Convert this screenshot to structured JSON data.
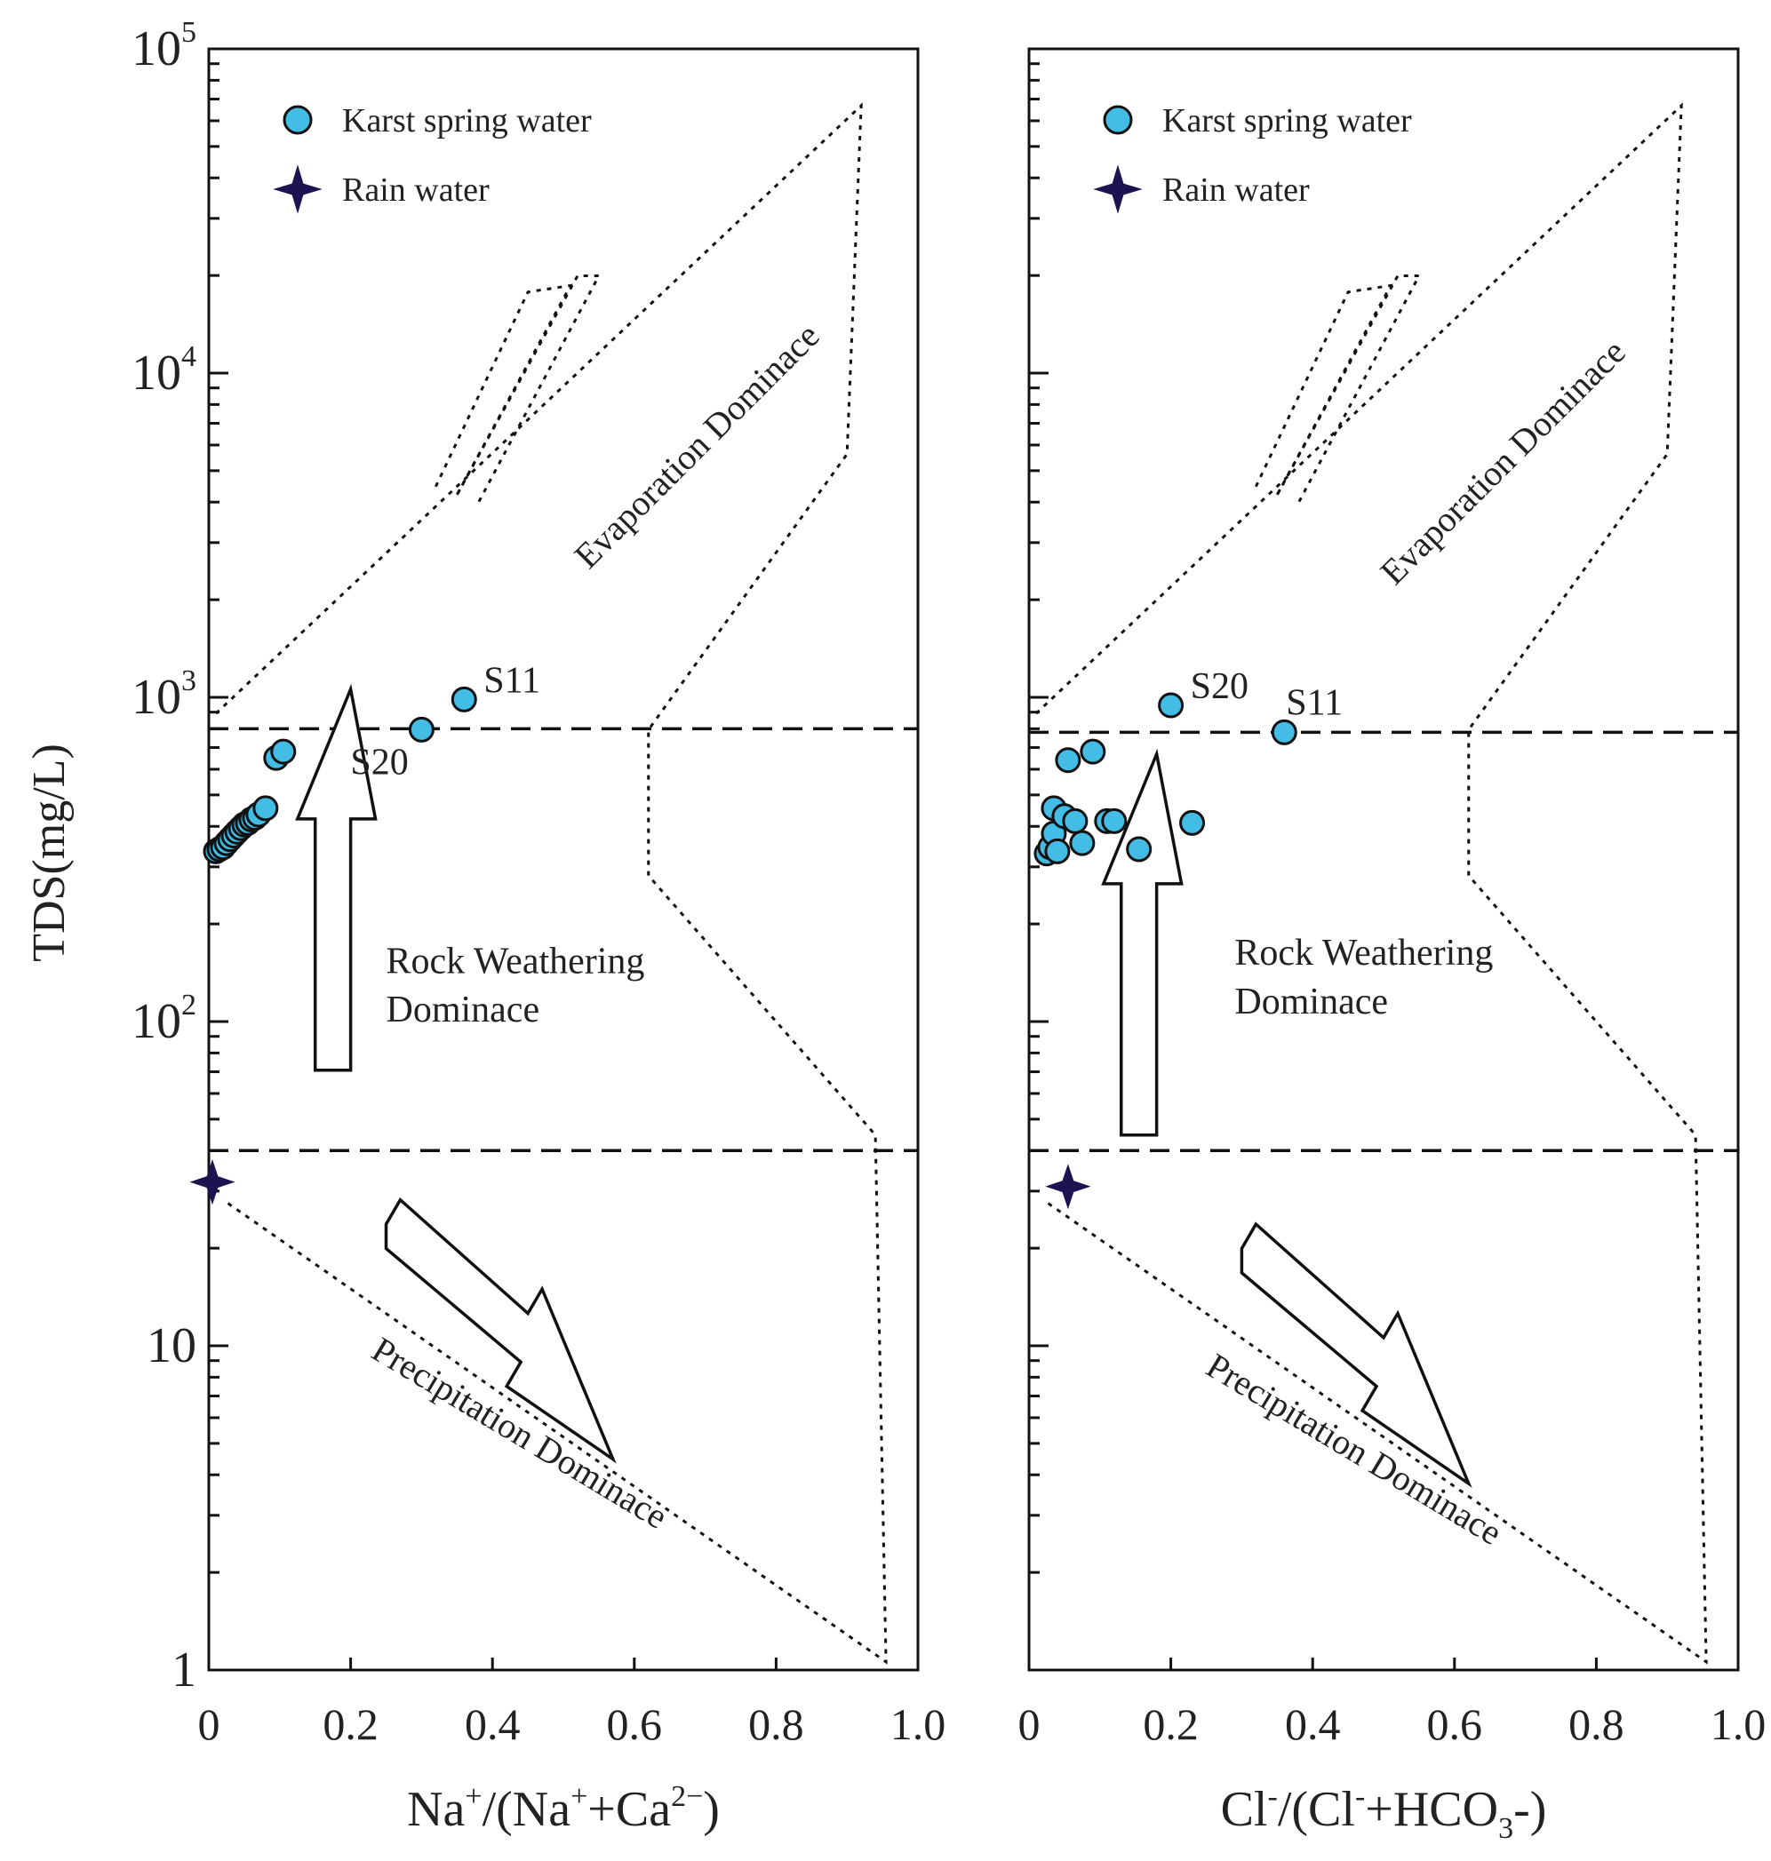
{
  "chart_data": [
    {
      "type": "scatter",
      "panel": "left",
      "ylabel": "TDS(mg/L)",
      "xlabel": {
        "main": "Na",
        "sup1": "+",
        "mid": "/(Na",
        "sup2": "+",
        "mid2": "+Ca",
        "sup3": "2−",
        "end": ")"
      },
      "xlim": [
        0,
        1.0
      ],
      "ylim": [
        1,
        100000
      ],
      "yscale": "log",
      "x_ticks": [
        "0",
        "0.2",
        "0.4",
        "0.6",
        "0.8",
        "1.0"
      ],
      "y_ticks": [
        {
          "base": "1",
          "exp": ""
        },
        {
          "base": "10",
          "exp": ""
        },
        {
          "base": "10",
          "exp": "2"
        },
        {
          "base": "10",
          "exp": "3"
        },
        {
          "base": "10",
          "exp": "4"
        },
        {
          "base": "10",
          "exp": "5"
        }
      ],
      "legend": [
        {
          "label": "Karst spring water",
          "marker": "circle"
        },
        {
          "label": "Rain water",
          "marker": "star"
        }
      ],
      "region_labels": {
        "evaporation": "Evaporation Dominace",
        "rock_line1": "Rock Weathering",
        "rock_line2": "Dominace",
        "precipitation": "Precipitation Dominace"
      },
      "series": [
        {
          "name": "Karst spring water",
          "points": [
            {
              "x": 0.01,
              "y": 335
            },
            {
              "x": 0.015,
              "y": 340
            },
            {
              "x": 0.02,
              "y": 345
            },
            {
              "x": 0.025,
              "y": 355
            },
            {
              "x": 0.03,
              "y": 365
            },
            {
              "x": 0.035,
              "y": 375
            },
            {
              "x": 0.04,
              "y": 385
            },
            {
              "x": 0.045,
              "y": 395
            },
            {
              "x": 0.05,
              "y": 405
            },
            {
              "x": 0.055,
              "y": 410
            },
            {
              "x": 0.06,
              "y": 420
            },
            {
              "x": 0.065,
              "y": 425
            },
            {
              "x": 0.07,
              "y": 435
            },
            {
              "x": 0.08,
              "y": 455
            },
            {
              "x": 0.095,
              "y": 650
            },
            {
              "x": 0.105,
              "y": 680
            },
            {
              "x": 0.3,
              "y": 795,
              "label": "S20"
            },
            {
              "x": 0.36,
              "y": 985,
              "label": "S11"
            }
          ]
        },
        {
          "name": "Rain water",
          "points": [
            {
              "x": 0.005,
              "y": 32
            }
          ]
        }
      ],
      "reference_lines_tds": [
        800,
        40
      ]
    },
    {
      "type": "scatter",
      "panel": "right",
      "ylabel": "",
      "xlabel": {
        "main": "Cl",
        "sup1": "-",
        "mid": "/(Cl",
        "sup2": "-",
        "mid2": "+HCO",
        "sub3": "3",
        "end": "-)"
      },
      "xlim": [
        0,
        1.0
      ],
      "ylim": [
        1,
        100000
      ],
      "yscale": "log",
      "x_ticks": [
        "0",
        "0.2",
        "0.4",
        "0.6",
        "0.8",
        "1.0"
      ],
      "legend": [
        {
          "label": "Karst spring water",
          "marker": "circle"
        },
        {
          "label": "Rain water",
          "marker": "star"
        }
      ],
      "region_labels": {
        "evaporation": "Evaporation Dominace",
        "rock_line1": "Rock Weathering",
        "rock_line2": "Dominace",
        "precipitation": "Precipitation Dominace"
      },
      "series": [
        {
          "name": "Karst spring water",
          "points": [
            {
              "x": 0.025,
              "y": 330
            },
            {
              "x": 0.03,
              "y": 345
            },
            {
              "x": 0.035,
              "y": 455
            },
            {
              "x": 0.035,
              "y": 380
            },
            {
              "x": 0.04,
              "y": 335
            },
            {
              "x": 0.05,
              "y": 430
            },
            {
              "x": 0.055,
              "y": 640
            },
            {
              "x": 0.065,
              "y": 415
            },
            {
              "x": 0.075,
              "y": 355
            },
            {
              "x": 0.09,
              "y": 680
            },
            {
              "x": 0.11,
              "y": 415
            },
            {
              "x": 0.12,
              "y": 415
            },
            {
              "x": 0.155,
              "y": 340
            },
            {
              "x": 0.2,
              "y": 945,
              "label": "S20"
            },
            {
              "x": 0.23,
              "y": 410
            },
            {
              "x": 0.36,
              "y": 780,
              "label": "S11"
            }
          ]
        },
        {
          "name": "Rain water",
          "points": [
            {
              "x": 0.055,
              "y": 31
            }
          ]
        }
      ],
      "reference_lines_tds": [
        780,
        40
      ]
    }
  ]
}
